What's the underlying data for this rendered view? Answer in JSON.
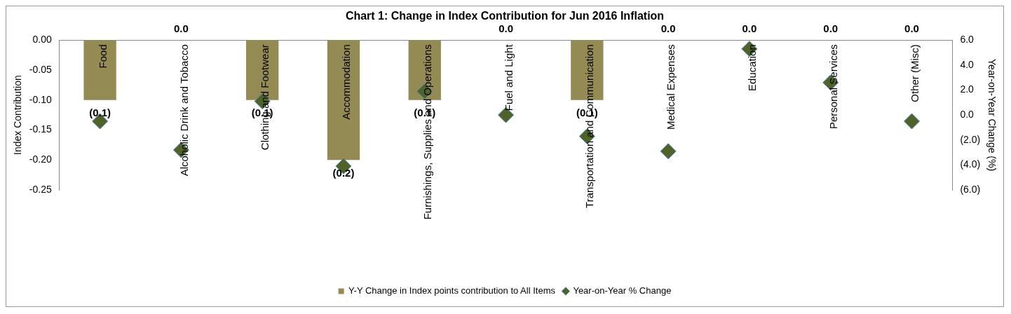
{
  "chart_data": {
    "type": "bar",
    "title": "Chart 1: Change in Index Contribution for Jun 2016 Inflation",
    "categories": [
      "Food",
      "Alcoholic Drink and Tobacco",
      "Clothing and Footwear",
      "Accommodation",
      "Furnishings, Supplies and Operations",
      "Fuel and Light",
      "Transportation and Communication",
      "Medical Expenses",
      "Education",
      "Personal Services",
      "Other (Misc)"
    ],
    "series": [
      {
        "name": "Y-Y Change in Index points contribution to All Items",
        "color": "#948a54",
        "values": [
          -0.1,
          0,
          -0.1,
          -0.2,
          -0.1,
          0,
          -0.1,
          0,
          0,
          0,
          0
        ],
        "value_labels": [
          "(0.1)",
          "0.0",
          "(0.1)",
          "(0.2)",
          "(0.1)",
          "0.0",
          "(0.1)",
          "0.0",
          "0.0",
          "0.0",
          "0.0"
        ]
      },
      {
        "name": "Year-on-Year % Change",
        "type": "scatter",
        "axis": "y2",
        "color": "#4f6228",
        "marker": "diamond",
        "values": [
          -0.5,
          -2.8,
          1.1,
          -4.1,
          1.9,
          0.0,
          -1.7,
          -2.9,
          5.3,
          2.6,
          -0.5
        ]
      }
    ],
    "ylabel": "Index Contribution",
    "y2label": "Year-on-Year Change (%)",
    "ylim": [
      -0.25,
      0
    ],
    "yticks": [
      {
        "value": 0,
        "label": "0.00"
      },
      {
        "value": -0.05,
        "label": "-0.05"
      },
      {
        "value": -0.1,
        "label": "-0.10"
      },
      {
        "value": -0.15,
        "label": "-0.15"
      },
      {
        "value": -0.2,
        "label": "-0.20"
      },
      {
        "value": -0.25,
        "label": "-0.25"
      }
    ],
    "y2lim": [
      -6,
      6
    ],
    "y2ticks": [
      {
        "value": 6,
        "label": "6.0"
      },
      {
        "value": 4,
        "label": "4.0"
      },
      {
        "value": 2,
        "label": "2.0"
      },
      {
        "value": 0,
        "label": "0.0"
      },
      {
        "value": -2,
        "label": "(2.0)"
      },
      {
        "value": -4,
        "label": "(4.0)"
      },
      {
        "value": -6,
        "label": "(6.0)"
      }
    ],
    "legend": "bottom"
  }
}
